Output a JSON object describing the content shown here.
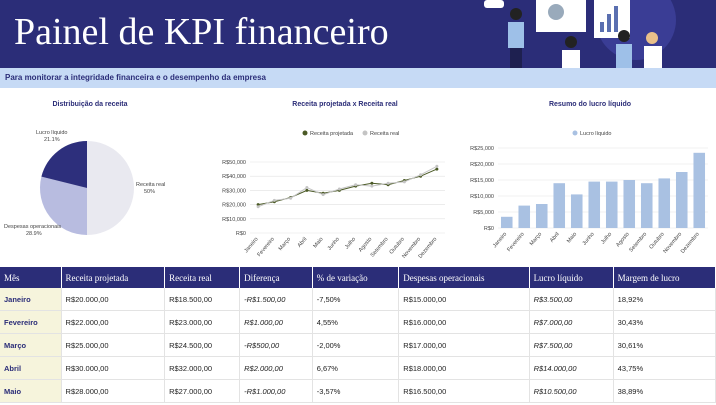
{
  "header": {
    "title": "Painel de KPI financeiro",
    "subtitle": "Para monitorar a integridade financeira e o desempenho da empresa"
  },
  "chart_data": [
    {
      "type": "pie",
      "title": "Distribuição da receita",
      "categories": [
        "Receita real",
        "Despesas operacionais",
        "Lucro líquido"
      ],
      "values": [
        50,
        28.9,
        21.1
      ],
      "value_labels": [
        "50%",
        "28.9%",
        "21.1%"
      ],
      "colors": [
        "#e9e9f0",
        "#b8bce0",
        "#2d2f7c"
      ]
    },
    {
      "type": "line",
      "title": "Receita projetada x Receita real",
      "categories": [
        "Janeiro",
        "Fevereiro",
        "Março",
        "Abril",
        "Maio",
        "Junho",
        "Julho",
        "Agosto",
        "Setembro",
        "Outubro",
        "Novembro",
        "Dezembro"
      ],
      "series": [
        {
          "name": "Receita projetada",
          "color": "#4b5a26",
          "values": [
            20000,
            22000,
            25000,
            30000,
            28000,
            30000,
            33000,
            35000,
            34000,
            37000,
            40000,
            45000
          ]
        },
        {
          "name": "Receita real",
          "color": "#c4c4c4",
          "values": [
            18500,
            23000,
            24500,
            32000,
            27000,
            31000,
            34000,
            33000,
            35000,
            36000,
            41000,
            47000
          ]
        }
      ],
      "ylim": [
        0,
        50000
      ],
      "yticks": [
        {
          "value": 0,
          "label": "R$0"
        },
        {
          "value": 10000,
          "label": "R$10,000"
        },
        {
          "value": 20000,
          "label": "R$20,000"
        },
        {
          "value": 30000,
          "label": "R$30,000"
        },
        {
          "value": 40000,
          "label": "R$40,000"
        },
        {
          "value": 50000,
          "label": "R$50,000"
        }
      ],
      "grid": true
    },
    {
      "type": "bar",
      "title": "Resumo do lucro líquido",
      "categories": [
        "Janeiro",
        "Fevereiro",
        "Março",
        "Abril",
        "Maio",
        "Junho",
        "Julho",
        "Agosto",
        "Setembro",
        "Outubro",
        "Novembro",
        "Dezembro"
      ],
      "series": [
        {
          "name": "Lucro líquido",
          "color": "#a9c1e2",
          "values": [
            3500,
            7000,
            7500,
            14000,
            10500,
            14500,
            14500,
            15000,
            14000,
            15500,
            17500,
            23500
          ]
        }
      ],
      "ylim": [
        0,
        25000
      ],
      "yticks": [
        {
          "value": 0,
          "label": "R$0"
        },
        {
          "value": 5000,
          "label": "R$5,000"
        },
        {
          "value": 10000,
          "label": "R$10,000"
        },
        {
          "value": 15000,
          "label": "R$15,000"
        },
        {
          "value": 20000,
          "label": "R$20,000"
        },
        {
          "value": 25000,
          "label": "R$25,000"
        }
      ],
      "grid": true
    }
  ],
  "table": {
    "columns": [
      "Mês",
      "Receita projetada",
      "Receita real",
      "Diferença",
      "% de variação",
      "Despesas operacionais",
      "Lucro líquido",
      "Margem de lucro"
    ],
    "rows": [
      [
        "Janeiro",
        "R$20.000,00",
        "R$18.500,00",
        "-R$1.500,00",
        "-7,50%",
        "R$15.000,00",
        "R$3.500,00",
        "18,92%"
      ],
      [
        "Fevereiro",
        "R$22.000,00",
        "R$23.000,00",
        "R$1.000,00",
        "4,55%",
        "R$16.000,00",
        "R$7.000,00",
        "30,43%"
      ],
      [
        "Março",
        "R$25.000,00",
        "R$24.500,00",
        "-R$500,00",
        "-2,00%",
        "R$17.000,00",
        "R$7.500,00",
        "30,61%"
      ],
      [
        "Abril",
        "R$30.000,00",
        "R$32.000,00",
        "R$2.000,00",
        "6,67%",
        "R$18.000,00",
        "R$14.000,00",
        "43,75%"
      ],
      [
        "Maio",
        "R$28.000,00",
        "R$27.000,00",
        "-R$1.000,00",
        "-3,57%",
        "R$16.500,00",
        "R$10.500,00",
        "38,89%"
      ]
    ]
  }
}
